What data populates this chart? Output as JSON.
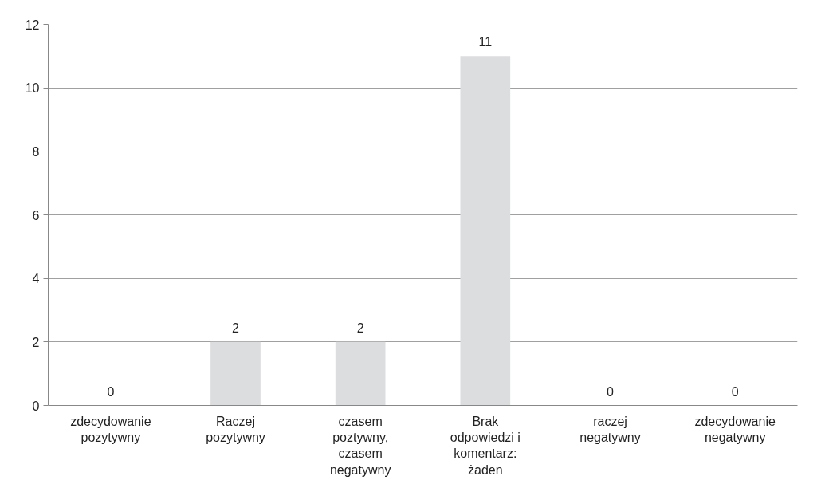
{
  "chart_data": {
    "type": "bar",
    "categories": [
      "zdecydowanie\npozytywny",
      "Raczej\npozytywny",
      "czasem\npoztywny,\nczasem\nnegatywny",
      "Brak\nodpowiedzi i\nkomentarz:\nżaden",
      "raczej\nnegatywny",
      "zdecydowanie\nnegatywny"
    ],
    "values": [
      0,
      2,
      2,
      11,
      0,
      0
    ],
    "color": "#dcdddf",
    "ylim": [
      0,
      12
    ],
    "yticks": [
      0,
      2,
      4,
      6,
      8,
      10,
      12
    ],
    "grid": "y",
    "data_labels": true
  }
}
